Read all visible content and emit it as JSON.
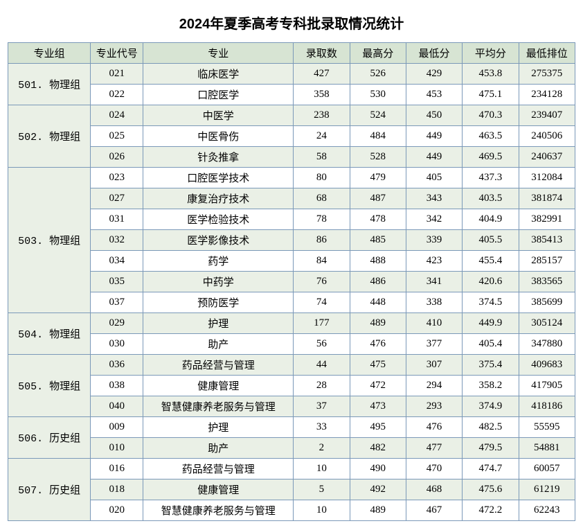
{
  "title": "2024年夏季高考专科批录取情况统计",
  "columns": [
    "专业组",
    "专业代号",
    "专业",
    "录取数",
    "最高分",
    "最低分",
    "平均分",
    "最低排位"
  ],
  "groups": [
    {
      "name": "501. 物理组",
      "rows": [
        {
          "code": "021",
          "major": "临床医学",
          "count": 427,
          "max": 526,
          "min": 429,
          "avg": "453.8",
          "rank": 275375
        },
        {
          "code": "022",
          "major": "口腔医学",
          "count": 358,
          "max": 530,
          "min": 453,
          "avg": "475.1",
          "rank": 234128
        }
      ]
    },
    {
      "name": "502. 物理组",
      "rows": [
        {
          "code": "024",
          "major": "中医学",
          "count": 238,
          "max": 524,
          "min": 450,
          "avg": "470.3",
          "rank": 239407
        },
        {
          "code": "025",
          "major": "中医骨伤",
          "count": 24,
          "max": 484,
          "min": 449,
          "avg": "463.5",
          "rank": 240506
        },
        {
          "code": "026",
          "major": "针灸推拿",
          "count": 58,
          "max": 528,
          "min": 449,
          "avg": "469.5",
          "rank": 240637
        }
      ]
    },
    {
      "name": "503. 物理组",
      "rows": [
        {
          "code": "023",
          "major": "口腔医学技术",
          "count": 80,
          "max": 479,
          "min": 405,
          "avg": "437.3",
          "rank": 312084
        },
        {
          "code": "027",
          "major": "康复治疗技术",
          "count": 68,
          "max": 487,
          "min": 343,
          "avg": "403.5",
          "rank": 381874
        },
        {
          "code": "031",
          "major": "医学检验技术",
          "count": 78,
          "max": 478,
          "min": 342,
          "avg": "404.9",
          "rank": 382991
        },
        {
          "code": "032",
          "major": "医学影像技术",
          "count": 86,
          "max": 485,
          "min": 339,
          "avg": "405.5",
          "rank": 385413
        },
        {
          "code": "034",
          "major": "药学",
          "count": 84,
          "max": 488,
          "min": 423,
          "avg": "455.4",
          "rank": 285157
        },
        {
          "code": "035",
          "major": "中药学",
          "count": 76,
          "max": 486,
          "min": 341,
          "avg": "420.6",
          "rank": 383565
        },
        {
          "code": "037",
          "major": "预防医学",
          "count": 74,
          "max": 448,
          "min": 338,
          "avg": "374.5",
          "rank": 385699
        }
      ]
    },
    {
      "name": "504. 物理组",
      "rows": [
        {
          "code": "029",
          "major": "护理",
          "count": 177,
          "max": 489,
          "min": 410,
          "avg": "449.9",
          "rank": 305124
        },
        {
          "code": "030",
          "major": "助产",
          "count": 56,
          "max": 476,
          "min": 377,
          "avg": "405.4",
          "rank": 347880
        }
      ]
    },
    {
      "name": "505. 物理组",
      "rows": [
        {
          "code": "036",
          "major": "药品经营与管理",
          "count": 44,
          "max": 475,
          "min": 307,
          "avg": "375.4",
          "rank": 409683
        },
        {
          "code": "038",
          "major": "健康管理",
          "count": 28,
          "max": 472,
          "min": 294,
          "avg": "358.2",
          "rank": 417905
        },
        {
          "code": "040",
          "major": "智慧健康养老服务与管理",
          "count": 37,
          "max": 473,
          "min": 293,
          "avg": "374.9",
          "rank": 418186
        }
      ]
    },
    {
      "name": "506. 历史组",
      "rows": [
        {
          "code": "009",
          "major": "护理",
          "count": 33,
          "max": 495,
          "min": 476,
          "avg": "482.5",
          "rank": 55595
        },
        {
          "code": "010",
          "major": "助产",
          "count": 2,
          "max": 482,
          "min": 477,
          "avg": "479.5",
          "rank": 54881
        }
      ]
    },
    {
      "name": "507. 历史组",
      "rows": [
        {
          "code": "016",
          "major": "药品经营与管理",
          "count": 10,
          "max": 490,
          "min": 470,
          "avg": "474.7",
          "rank": 60057
        },
        {
          "code": "018",
          "major": "健康管理",
          "count": 5,
          "max": 492,
          "min": 468,
          "avg": "475.6",
          "rank": 61219
        },
        {
          "code": "020",
          "major": "智慧健康养老服务与管理",
          "count": 10,
          "max": 489,
          "min": 467,
          "avg": "472.2",
          "rank": 62243
        }
      ]
    }
  ]
}
